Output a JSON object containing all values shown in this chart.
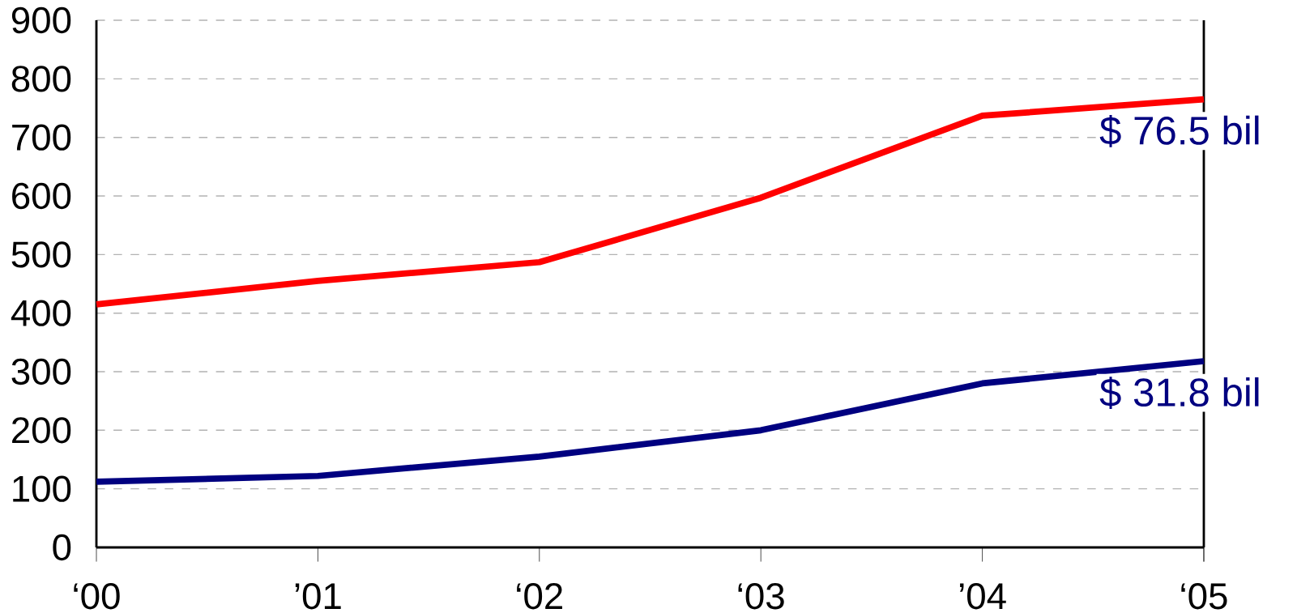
{
  "chart_data": {
    "type": "line",
    "categories": [
      "‘00",
      "’01",
      "‘02",
      "‘03",
      "’04",
      "‘05"
    ],
    "series": [
      {
        "color": "#ff0000",
        "values": [
          415,
          455,
          487,
          597,
          737,
          765
        ]
      },
      {
        "color": "#000080",
        "values": [
          112,
          122,
          155,
          200,
          280,
          318
        ]
      }
    ],
    "ylim": [
      0,
      900
    ],
    "yticks": [
      0,
      100,
      200,
      300,
      400,
      500,
      600,
      700,
      800,
      900
    ],
    "grid": "y",
    "marker": "none",
    "line_style": "solid",
    "annotations": [
      {
        "text": "$ 76.5 bil",
        "x": "‘05",
        "y": 765
      },
      {
        "text": "$ 31.8 bil",
        "x": "‘05",
        "y": 318
      }
    ]
  }
}
